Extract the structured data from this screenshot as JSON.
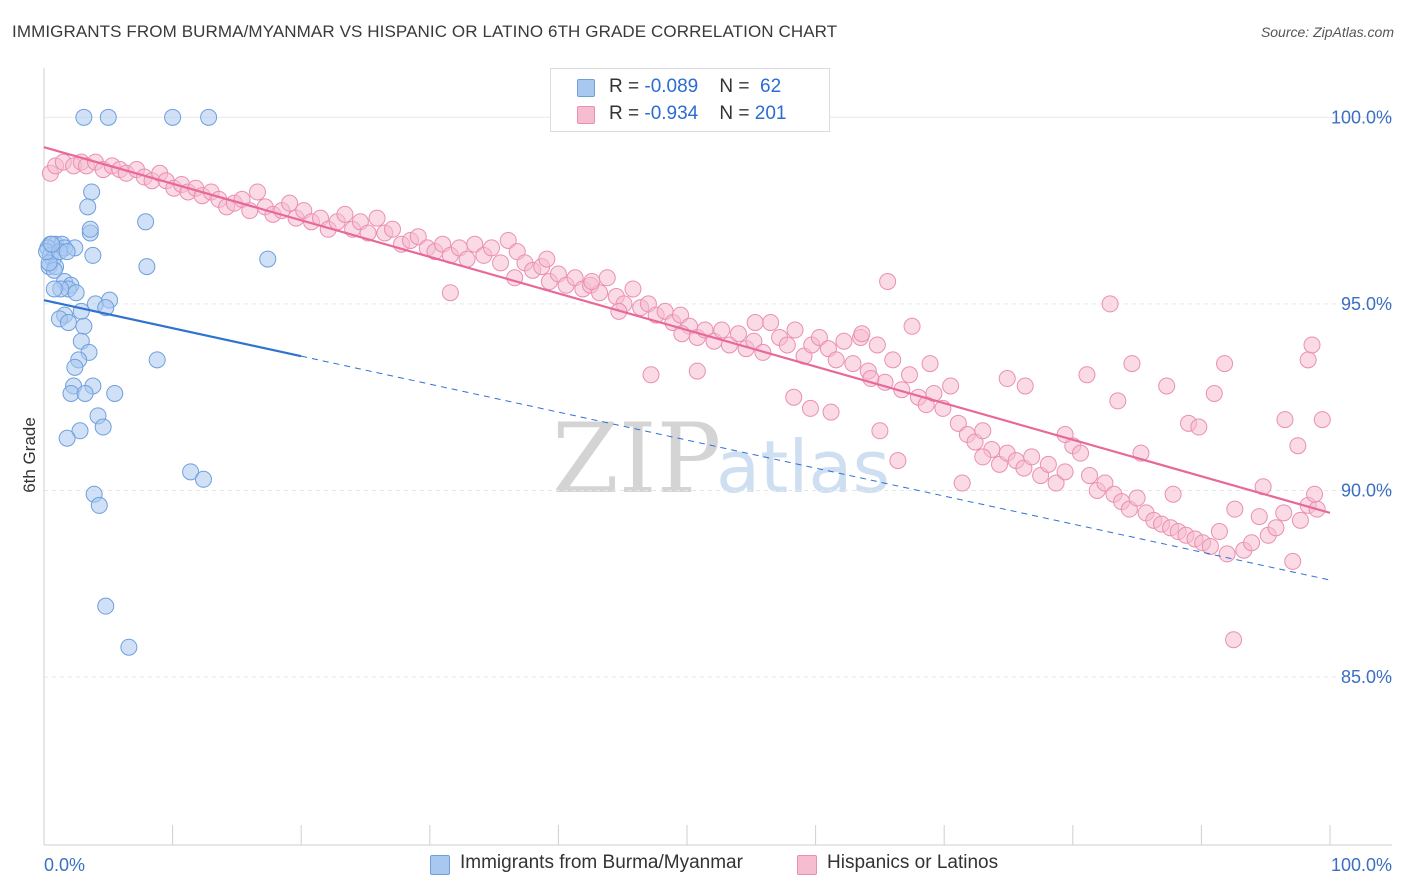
{
  "header": {
    "title": "IMMIGRANTS FROM BURMA/MYANMAR VS HISPANIC OR LATINO 6TH GRADE CORRELATION CHART",
    "source": "Source: ZipAtlas.com"
  },
  "watermark": {
    "zip": "ZIP",
    "atlas": "atlas"
  },
  "legend": {
    "rows": [
      {
        "r_label": "R = ",
        "r_value": "-0.089",
        "n_label": "N = ",
        "n_value": " 62",
        "color": "#a9c8f0"
      },
      {
        "r_label": "R = ",
        "r_value": "-0.934",
        "n_label": "N = ",
        "n_value": "201",
        "color": "#f6bcd0"
      }
    ]
  },
  "bottom_legend": {
    "items": [
      {
        "label": "Immigrants from Burma/Myanmar",
        "color": "#a9c8f0"
      },
      {
        "label": "Hispanics or Latinos",
        "color": "#f6bcd0"
      }
    ]
  },
  "chart_data": {
    "type": "scatter",
    "title": "IMMIGRANTS FROM BURMA/MYANMAR VS HISPANIC OR LATINO 6TH GRADE CORRELATION CHART",
    "xlabel": "",
    "ylabel": "6th Grade",
    "xlim": [
      0,
      100
    ],
    "ylim": [
      80.5,
      101
    ],
    "x_ticks": [
      {
        "value": 0,
        "label": "0.0%"
      },
      {
        "value": 100,
        "label": "100.0%"
      }
    ],
    "y_ticks": [
      {
        "value": 100,
        "label": "100.0%"
      },
      {
        "value": 95,
        "label": "95.0%"
      },
      {
        "value": 90,
        "label": "90.0%"
      },
      {
        "value": 85,
        "label": "85.0%"
      }
    ],
    "grid": true,
    "series": [
      {
        "name": "Immigrants from Burma/Myanmar",
        "color": "#a9c8f0",
        "stroke": "#6f9fdc",
        "trend": {
          "x": [
            0,
            20
          ],
          "y": [
            95.1,
            93.6
          ],
          "dashed_to": [
            100,
            87.6
          ],
          "color": "#2f72d0"
        },
        "points": [
          [
            3.1,
            100
          ],
          [
            5.0,
            100
          ],
          [
            10.0,
            100
          ],
          [
            12.8,
            100
          ],
          [
            3.7,
            98.0
          ],
          [
            3.4,
            97.6
          ],
          [
            7.9,
            97.2
          ],
          [
            3.6,
            96.9
          ],
          [
            3.6,
            97.0
          ],
          [
            0.5,
            96.6
          ],
          [
            0.9,
            96.6
          ],
          [
            1.4,
            96.6
          ],
          [
            1.6,
            96.5
          ],
          [
            2.4,
            96.5
          ],
          [
            3.8,
            96.3
          ],
          [
            0.3,
            96.5
          ],
          [
            0.5,
            96.3
          ],
          [
            0.7,
            96.2
          ],
          [
            0.4,
            96.0
          ],
          [
            0.9,
            96.0
          ],
          [
            0.8,
            95.9
          ],
          [
            0.4,
            96.1
          ],
          [
            0.2,
            96.4
          ],
          [
            1.2,
            96.4
          ],
          [
            0.6,
            96.6
          ],
          [
            1.8,
            96.4
          ],
          [
            8.0,
            96.0
          ],
          [
            17.4,
            96.2
          ],
          [
            1.6,
            95.6
          ],
          [
            2.1,
            95.5
          ],
          [
            1.9,
            95.4
          ],
          [
            1.3,
            95.4
          ],
          [
            0.8,
            95.4
          ],
          [
            2.5,
            95.3
          ],
          [
            4.0,
            95.0
          ],
          [
            5.1,
            95.1
          ],
          [
            4.8,
            94.9
          ],
          [
            1.6,
            94.7
          ],
          [
            2.9,
            94.8
          ],
          [
            1.2,
            94.6
          ],
          [
            1.9,
            94.5
          ],
          [
            3.1,
            94.4
          ],
          [
            2.9,
            94.0
          ],
          [
            3.5,
            93.7
          ],
          [
            2.7,
            93.5
          ],
          [
            2.4,
            93.3
          ],
          [
            8.8,
            93.5
          ],
          [
            2.3,
            92.8
          ],
          [
            3.8,
            92.8
          ],
          [
            2.1,
            92.6
          ],
          [
            3.2,
            92.6
          ],
          [
            5.5,
            92.6
          ],
          [
            4.2,
            92.0
          ],
          [
            4.6,
            91.7
          ],
          [
            2.8,
            91.6
          ],
          [
            1.8,
            91.4
          ],
          [
            11.4,
            90.5
          ],
          [
            12.4,
            90.3
          ],
          [
            3.9,
            89.9
          ],
          [
            4.3,
            89.6
          ],
          [
            4.8,
            86.9
          ],
          [
            6.6,
            85.8
          ]
        ]
      },
      {
        "name": "Hispanics or Latinos",
        "color": "#f6bcd0",
        "stroke": "#eb8fb0",
        "trend": {
          "x": [
            0,
            100
          ],
          "y": [
            99.2,
            89.4
          ],
          "color": "#e8689a"
        },
        "points": [
          [
            0.5,
            98.5
          ],
          [
            0.9,
            98.7
          ],
          [
            1.5,
            98.8
          ],
          [
            2.3,
            98.7
          ],
          [
            2.9,
            98.8
          ],
          [
            3.3,
            98.7
          ],
          [
            4.0,
            98.8
          ],
          [
            4.6,
            98.6
          ],
          [
            5.3,
            98.7
          ],
          [
            5.9,
            98.6
          ],
          [
            6.4,
            98.5
          ],
          [
            7.2,
            98.6
          ],
          [
            7.8,
            98.4
          ],
          [
            8.4,
            98.3
          ],
          [
            9.0,
            98.5
          ],
          [
            9.5,
            98.3
          ],
          [
            10.1,
            98.1
          ],
          [
            10.7,
            98.2
          ],
          [
            11.2,
            98.0
          ],
          [
            11.8,
            98.1
          ],
          [
            12.3,
            97.9
          ],
          [
            13.0,
            98.0
          ],
          [
            13.6,
            97.8
          ],
          [
            14.2,
            97.6
          ],
          [
            14.8,
            97.7
          ],
          [
            15.4,
            97.8
          ],
          [
            16.0,
            97.5
          ],
          [
            16.6,
            98.0
          ],
          [
            17.2,
            97.6
          ],
          [
            17.8,
            97.4
          ],
          [
            18.5,
            97.5
          ],
          [
            19.1,
            97.7
          ],
          [
            19.6,
            97.3
          ],
          [
            20.2,
            97.5
          ],
          [
            20.8,
            97.2
          ],
          [
            21.5,
            97.3
          ],
          [
            22.1,
            97.0
          ],
          [
            22.8,
            97.2
          ],
          [
            23.4,
            97.4
          ],
          [
            24.0,
            97.0
          ],
          [
            24.6,
            97.2
          ],
          [
            25.2,
            96.9
          ],
          [
            25.9,
            97.3
          ],
          [
            26.5,
            96.9
          ],
          [
            27.1,
            97.0
          ],
          [
            27.8,
            96.6
          ],
          [
            28.5,
            96.7
          ],
          [
            29.1,
            96.8
          ],
          [
            29.8,
            96.5
          ],
          [
            30.4,
            96.4
          ],
          [
            31.0,
            96.6
          ],
          [
            31.6,
            96.3
          ],
          [
            32.3,
            96.5
          ],
          [
            32.9,
            96.2
          ],
          [
            33.5,
            96.6
          ],
          [
            34.2,
            96.3
          ],
          [
            34.8,
            96.5
          ],
          [
            35.5,
            96.1
          ],
          [
            36.1,
            96.7
          ],
          [
            36.8,
            96.4
          ],
          [
            37.4,
            96.1
          ],
          [
            38.0,
            95.9
          ],
          [
            38.7,
            96.0
          ],
          [
            39.3,
            95.6
          ],
          [
            40.0,
            95.8
          ],
          [
            40.6,
            95.5
          ],
          [
            41.3,
            95.7
          ],
          [
            41.9,
            95.4
          ],
          [
            42.5,
            95.5
          ],
          [
            43.2,
            95.3
          ],
          [
            43.8,
            95.7
          ],
          [
            44.5,
            95.2
          ],
          [
            45.1,
            95.0
          ],
          [
            45.8,
            95.4
          ],
          [
            46.4,
            94.9
          ],
          [
            47.0,
            95.0
          ],
          [
            47.6,
            94.7
          ],
          [
            48.3,
            94.8
          ],
          [
            48.9,
            94.5
          ],
          [
            49.5,
            94.7
          ],
          [
            50.2,
            94.4
          ],
          [
            50.8,
            94.1
          ],
          [
            51.4,
            94.3
          ],
          [
            52.1,
            94.0
          ],
          [
            52.7,
            94.3
          ],
          [
            53.3,
            93.9
          ],
          [
            54.0,
            94.2
          ],
          [
            54.6,
            93.8
          ],
          [
            55.2,
            94.0
          ],
          [
            55.9,
            93.7
          ],
          [
            56.5,
            94.5
          ],
          [
            57.2,
            94.1
          ],
          [
            57.8,
            93.9
          ],
          [
            58.4,
            94.3
          ],
          [
            59.1,
            93.6
          ],
          [
            59.7,
            93.9
          ],
          [
            60.3,
            94.1
          ],
          [
            61.0,
            93.8
          ],
          [
            61.6,
            93.5
          ],
          [
            62.2,
            94.0
          ],
          [
            62.9,
            93.4
          ],
          [
            63.5,
            94.1
          ],
          [
            64.1,
            93.2
          ],
          [
            64.8,
            93.9
          ],
          [
            65.4,
            92.9
          ],
          [
            66.0,
            93.5
          ],
          [
            66.7,
            92.7
          ],
          [
            67.3,
            93.1
          ],
          [
            68.0,
            92.5
          ],
          [
            68.6,
            92.3
          ],
          [
            69.2,
            92.6
          ],
          [
            69.9,
            92.2
          ],
          [
            70.5,
            92.8
          ],
          [
            71.1,
            91.8
          ],
          [
            71.8,
            91.5
          ],
          [
            72.4,
            91.3
          ],
          [
            73.0,
            91.6
          ],
          [
            73.7,
            91.1
          ],
          [
            74.3,
            90.7
          ],
          [
            74.9,
            91.0
          ],
          [
            75.6,
            90.8
          ],
          [
            76.2,
            90.6
          ],
          [
            76.8,
            90.9
          ],
          [
            77.5,
            90.4
          ],
          [
            78.1,
            90.7
          ],
          [
            78.7,
            90.2
          ],
          [
            79.4,
            90.5
          ],
          [
            80.0,
            91.2
          ],
          [
            80.6,
            91.0
          ],
          [
            81.3,
            90.4
          ],
          [
            81.9,
            90.0
          ],
          [
            82.5,
            90.2
          ],
          [
            83.2,
            89.9
          ],
          [
            83.8,
            89.7
          ],
          [
            84.4,
            89.5
          ],
          [
            85.0,
            89.8
          ],
          [
            85.7,
            89.4
          ],
          [
            86.3,
            89.2
          ],
          [
            86.9,
            89.1
          ],
          [
            87.6,
            89.0
          ],
          [
            88.2,
            88.9
          ],
          [
            88.8,
            88.8
          ],
          [
            89.5,
            88.7
          ],
          [
            90.1,
            88.6
          ],
          [
            90.7,
            88.5
          ],
          [
            91.4,
            88.9
          ],
          [
            92.0,
            88.3
          ],
          [
            92.6,
            89.5
          ],
          [
            93.3,
            88.4
          ],
          [
            93.9,
            88.6
          ],
          [
            94.5,
            89.3
          ],
          [
            95.2,
            88.8
          ],
          [
            95.8,
            89.0
          ],
          [
            96.4,
            89.4
          ],
          [
            97.1,
            88.1
          ],
          [
            97.7,
            89.2
          ],
          [
            98.3,
            89.6
          ],
          [
            99.0,
            89.5
          ],
          [
            99.4,
            91.9
          ],
          [
            31.6,
            95.3
          ],
          [
            36.6,
            95.7
          ],
          [
            39.1,
            96.2
          ],
          [
            42.6,
            95.6
          ],
          [
            44.7,
            94.8
          ],
          [
            47.2,
            93.1
          ],
          [
            49.6,
            94.2
          ],
          [
            50.8,
            93.2
          ],
          [
            55.3,
            94.5
          ],
          [
            58.3,
            92.5
          ],
          [
            59.6,
            92.2
          ],
          [
            61.2,
            92.1
          ],
          [
            63.6,
            94.2
          ],
          [
            64.3,
            93.0
          ],
          [
            65.0,
            91.6
          ],
          [
            65.6,
            95.6
          ],
          [
            66.4,
            90.8
          ],
          [
            67.5,
            94.4
          ],
          [
            68.9,
            93.4
          ],
          [
            71.4,
            90.2
          ],
          [
            73.0,
            90.9
          ],
          [
            74.9,
            93.0
          ],
          [
            76.3,
            92.8
          ],
          [
            79.4,
            91.5
          ],
          [
            81.1,
            93.1
          ],
          [
            82.9,
            95.0
          ],
          [
            83.5,
            92.4
          ],
          [
            84.6,
            93.4
          ],
          [
            85.3,
            91.0
          ],
          [
            87.3,
            92.8
          ],
          [
            87.8,
            89.9
          ],
          [
            89.0,
            91.8
          ],
          [
            89.8,
            91.7
          ],
          [
            91.0,
            92.6
          ],
          [
            91.8,
            93.4
          ],
          [
            92.5,
            86.0
          ],
          [
            94.8,
            90.1
          ],
          [
            96.5,
            91.9
          ],
          [
            97.5,
            91.2
          ],
          [
            98.3,
            93.5
          ],
          [
            98.6,
            93.9
          ],
          [
            98.8,
            89.9
          ]
        ]
      }
    ]
  }
}
